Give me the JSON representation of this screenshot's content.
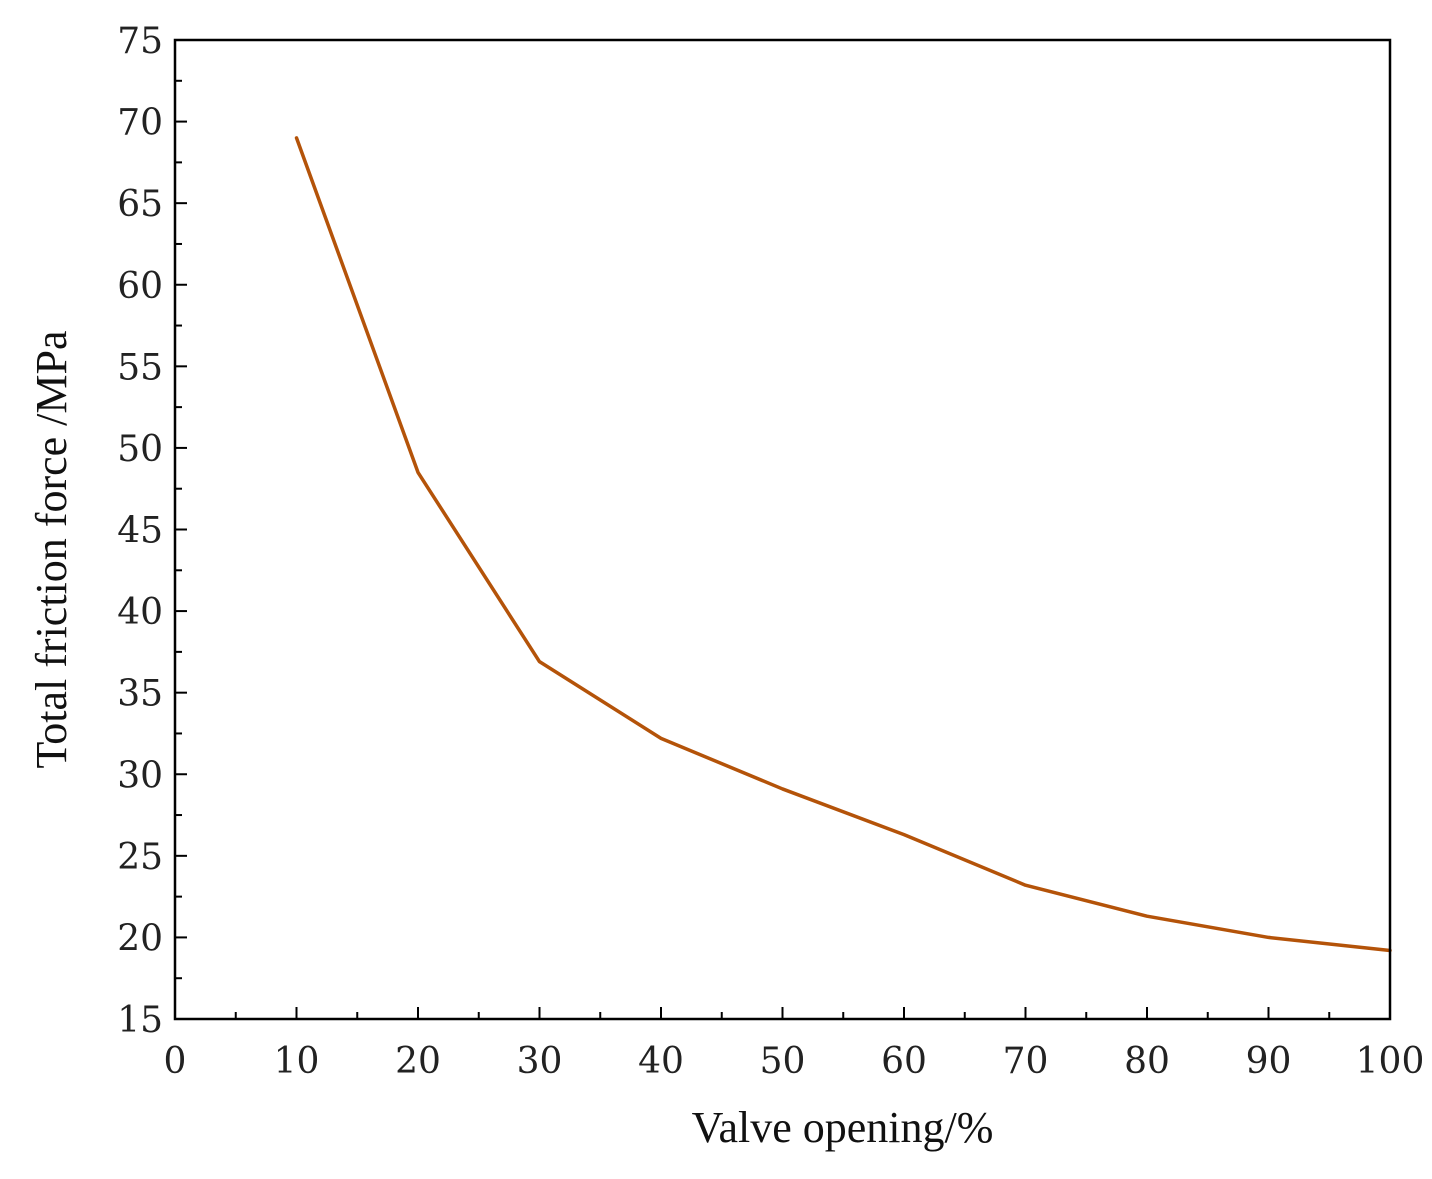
{
  "chart_data": {
    "type": "line",
    "xlabel": "Valve opening/%",
    "ylabel": "Total friction force /MPa",
    "xlim": [
      0,
      100
    ],
    "ylim": [
      15,
      75
    ],
    "x_ticks": [
      0,
      10,
      20,
      30,
      40,
      50,
      60,
      70,
      80,
      90,
      100
    ],
    "y_ticks": [
      15,
      20,
      25,
      30,
      35,
      40,
      45,
      50,
      55,
      60,
      65,
      70,
      75
    ],
    "x_minor_step": 5,
    "y_minor_step": 2.5,
    "grid": false,
    "series": [
      {
        "color": "#b45309",
        "x": [
          10,
          20,
          30,
          40,
          50,
          60,
          70,
          80,
          90,
          100
        ],
        "y": [
          69.0,
          48.5,
          36.9,
          32.2,
          29.1,
          26.3,
          23.2,
          21.3,
          20.0,
          19.2
        ]
      }
    ]
  }
}
